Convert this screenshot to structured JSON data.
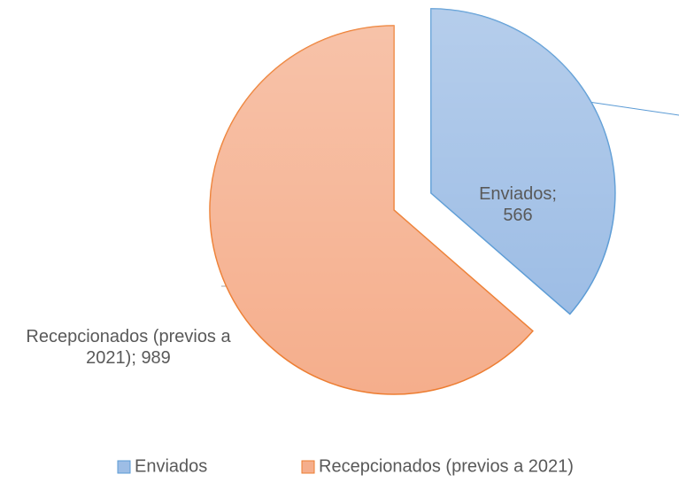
{
  "chart_data": {
    "type": "pie",
    "categories": [
      "Enviados",
      "Recepcionados (previos a 2021)"
    ],
    "values": [
      566,
      989
    ],
    "value_labels": [
      "Enviados; 566",
      "Recepcionados (previos a 2021); 989"
    ],
    "colors": [
      "#9dbde5",
      "#f5ae8c"
    ],
    "edge_colors": [
      "#5b9bd5",
      "#ed7d31"
    ],
    "exploded": [
      true,
      false
    ],
    "legend": "bottom"
  }
}
